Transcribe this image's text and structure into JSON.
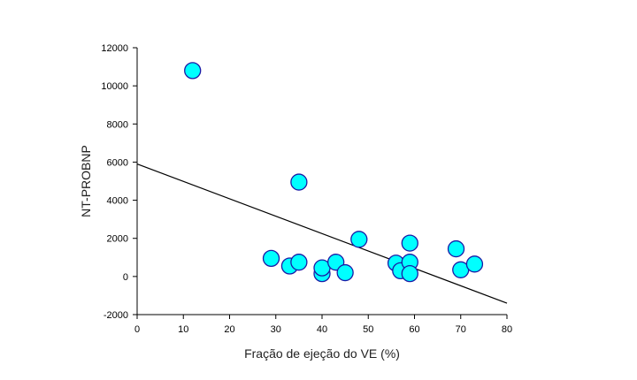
{
  "chart_data": {
    "type": "scatter",
    "title": "",
    "xlabel": "Fração de ejeção do VE (%)",
    "ylabel": "NT-PROBNP",
    "xlim": [
      0,
      80
    ],
    "ylim": [
      -2000,
      12000
    ],
    "xticks": [
      "0",
      "10",
      "20",
      "30",
      "40",
      "50",
      "60",
      "70",
      "80"
    ],
    "yticks": [
      "-2000",
      "0",
      "2000",
      "4000",
      "6000",
      "8000",
      "10000",
      "12000"
    ],
    "grid": false,
    "legend": "none",
    "marker_fill": "#00ffff",
    "marker_stroke": "#1a1aa6",
    "line_color": "#000000",
    "series": [
      {
        "points": [
          {
            "x": 12,
            "y": 10800
          },
          {
            "x": 35,
            "y": 4950
          },
          {
            "x": 29,
            "y": 950
          },
          {
            "x": 33,
            "y": 550
          },
          {
            "x": 35,
            "y": 750
          },
          {
            "x": 40,
            "y": 150
          },
          {
            "x": 40,
            "y": 450
          },
          {
            "x": 43,
            "y": 750
          },
          {
            "x": 45,
            "y": 200
          },
          {
            "x": 48,
            "y": 1950
          },
          {
            "x": 56,
            "y": 700
          },
          {
            "x": 57,
            "y": 300
          },
          {
            "x": 59,
            "y": 1750
          },
          {
            "x": 59,
            "y": 750
          },
          {
            "x": 59,
            "y": 150
          },
          {
            "x": 69,
            "y": 1450
          },
          {
            "x": 70,
            "y": 350
          },
          {
            "x": 73,
            "y": 650
          }
        ]
      }
    ],
    "trendline": {
      "x": [
        0,
        80
      ],
      "y": [
        5900,
        -1400
      ]
    }
  }
}
